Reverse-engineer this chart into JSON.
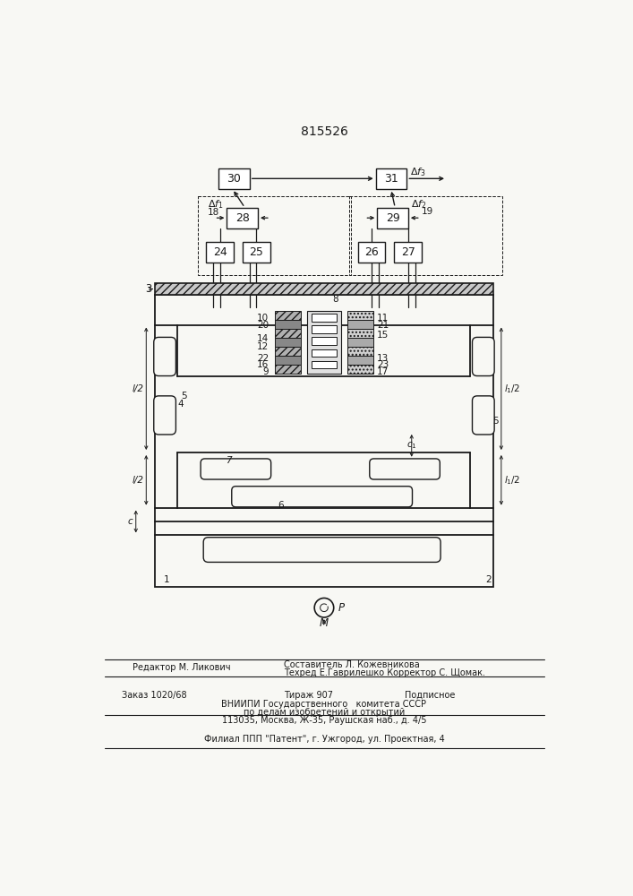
{
  "patent_number": "815526",
  "bg_color": "#f8f8f4",
  "lc": "#1a1a1a",
  "fig_width": 7.07,
  "fig_height": 10.0,
  "dpi": 100,
  "footer": {
    "line1_left": "Редактор М. Ликович",
    "line1_right_top": "Составитель Л. Кожевникова",
    "line1_right_bot": "Техред Е.Гаврилешко Корректор С. Щомак.",
    "order": "Заказ 1020/68",
    "tirazh": "Тираж 907",
    "podp": "Подписное",
    "vniip1": "ВНИИПИ Государственного   комитета СССР",
    "vniip2": "по делам изобретений и открытий",
    "addr": "113035, Москва, Ж-35, Раушская наб., д. 4/5",
    "filial": "Филиал ППП \"Патент\", г. Ужгород, ул. Проектная, 4"
  }
}
